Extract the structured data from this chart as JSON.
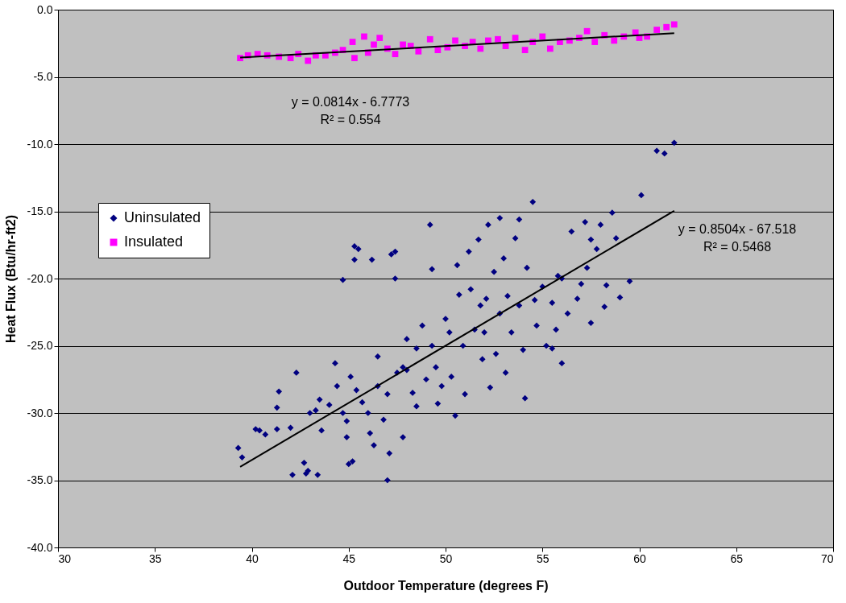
{
  "chart_data": {
    "type": "scatter",
    "xlabel": "Outdoor Temperature (degrees F)",
    "ylabel": "Heat Flux (Btu/hr-ft2)",
    "xlim": [
      30,
      70
    ],
    "xticks": [
      30,
      35,
      40,
      45,
      50,
      55,
      60,
      65,
      70
    ],
    "ylim": [
      -40,
      0
    ],
    "yticks": [
      {
        "value": -40,
        "label": "-40.0"
      },
      {
        "value": -35,
        "label": "-35.0"
      },
      {
        "value": -30,
        "label": "-30.0"
      },
      {
        "value": -25,
        "label": "-25.0"
      },
      {
        "value": -20,
        "label": "-20.0"
      },
      {
        "value": -15,
        "label": "-15.0"
      },
      {
        "value": -10,
        "label": "-10.0"
      },
      {
        "value": -5,
        "label": "-5.0"
      },
      {
        "value": 0,
        "label": "0.0"
      }
    ],
    "grid": "y",
    "legend": "left",
    "series": [
      {
        "name": "Uninsulated",
        "color": "#000080",
        "marker": "diamond",
        "x": [
          39.3,
          39.5,
          40.2,
          40.4,
          40.7,
          41.3,
          41.3,
          41.4,
          42.0,
          42.3,
          42.1,
          42.7,
          42.8,
          42.9,
          43.0,
          43.3,
          43.5,
          43.6,
          43.4,
          44.0,
          44.3,
          44.4,
          44.7,
          44.9,
          44.9,
          45.0,
          45.2,
          45.1,
          45.4,
          45.3,
          45.5,
          45.3,
          44.7,
          45.7,
          46.0,
          46.1,
          46.3,
          46.5,
          46.2,
          46.8,
          47.0,
          47.0,
          47.1,
          47.4,
          47.2,
          47.4,
          47.5,
          47.8,
          47.8,
          48.0,
          48.3,
          48.5,
          48.5,
          48.8,
          49.0,
          49.2,
          49.3,
          49.3,
          49.5,
          49.6,
          49.8,
          50.0,
          50.2,
          50.3,
          50.5,
          50.6,
          50.7,
          50.9,
          51.0,
          51.2,
          51.3,
          51.5,
          51.7,
          51.8,
          51.9,
          52.0,
          52.1,
          52.2,
          52.3,
          52.5,
          52.6,
          52.8,
          53.0,
          53.1,
          53.2,
          53.4,
          53.6,
          53.8,
          54.0,
          54.1,
          54.2,
          54.5,
          54.6,
          54.7,
          55.0,
          55.2,
          55.5,
          55.8,
          55.7,
          56.0,
          56.3,
          56.5,
          56.8,
          57.0,
          57.2,
          57.3,
          57.5,
          57.5,
          57.8,
          58.0,
          58.2,
          58.3,
          58.6,
          58.8,
          59.0,
          59.5,
          60.1,
          60.9,
          61.3,
          61.8,
          52.8,
          53.8,
          55.5,
          56.0,
          48.0,
          46.5
        ],
        "values": [
          -32.6,
          -33.3,
          -31.2,
          -31.3,
          -31.6,
          -31.2,
          -29.6,
          -28.4,
          -31.1,
          -27.0,
          -34.6,
          -33.7,
          -34.5,
          -34.3,
          -30.0,
          -29.8,
          -29.0,
          -31.3,
          -34.6,
          -29.4,
          -26.3,
          -28.0,
          -30.0,
          -30.6,
          -31.8,
          -33.8,
          -33.6,
          -27.3,
          -28.3,
          -17.6,
          -17.8,
          -18.6,
          -20.1,
          -29.2,
          -30.0,
          -31.5,
          -32.4,
          -28.0,
          -18.6,
          -30.5,
          -28.6,
          -35.0,
          -33.0,
          -18.0,
          -18.2,
          -20.0,
          -27.0,
          -26.6,
          -31.8,
          -24.5,
          -28.5,
          -25.2,
          -29.5,
          -23.5,
          -27.5,
          -16.0,
          -19.3,
          -25.0,
          -26.6,
          -29.3,
          -28.0,
          -23.0,
          -24.0,
          -27.3,
          -30.2,
          -19.0,
          -21.2,
          -25.0,
          -28.6,
          -18.0,
          -20.8,
          -23.8,
          -17.1,
          -22.0,
          -26.0,
          -24.0,
          -21.5,
          -16.0,
          -28.1,
          -19.5,
          -25.6,
          -22.6,
          -18.5,
          -27.0,
          -21.3,
          -24.0,
          -17.0,
          -22.0,
          -25.3,
          -28.9,
          -19.2,
          -14.3,
          -21.6,
          -23.5,
          -20.6,
          -25.0,
          -21.8,
          -19.8,
          -23.8,
          -20.0,
          -22.6,
          -16.5,
          -21.5,
          -20.4,
          -15.8,
          -19.2,
          -17.1,
          -23.3,
          -17.8,
          -16.0,
          -22.1,
          -20.5,
          -15.1,
          -17.0,
          -21.4,
          -20.2,
          -13.8,
          -10.5,
          -10.7,
          -9.9,
          -15.5,
          -15.6,
          -25.2,
          -26.3,
          -26.8,
          -25.8
        ]
      },
      {
        "name": "Insulated",
        "color": "#ff00ff",
        "marker": "square",
        "x": [
          39.4,
          39.8,
          40.3,
          40.8,
          41.4,
          42.0,
          42.4,
          42.9,
          43.3,
          43.8,
          44.3,
          44.7,
          45.2,
          45.3,
          45.8,
          46.0,
          46.3,
          46.6,
          47.0,
          47.4,
          47.8,
          48.2,
          48.6,
          49.2,
          49.6,
          50.1,
          50.5,
          51.0,
          51.4,
          51.8,
          52.2,
          52.7,
          53.1,
          53.6,
          54.1,
          54.5,
          55.0,
          55.4,
          55.9,
          56.4,
          56.9,
          57.3,
          57.7,
          58.2,
          58.7,
          59.2,
          59.8,
          60.4,
          60.9,
          61.4,
          61.8,
          60.0
        ],
        "values": [
          -3.6,
          -3.4,
          -3.3,
          -3.4,
          -3.5,
          -3.6,
          -3.3,
          -3.8,
          -3.4,
          -3.4,
          -3.2,
          -3.0,
          -2.4,
          -3.6,
          -2.0,
          -3.2,
          -2.6,
          -2.1,
          -2.9,
          -3.3,
          -2.6,
          -2.7,
          -3.1,
          -2.2,
          -3.0,
          -2.8,
          -2.3,
          -2.7,
          -2.4,
          -2.9,
          -2.3,
          -2.2,
          -2.7,
          -2.1,
          -3.0,
          -2.4,
          -2.0,
          -2.9,
          -2.4,
          -2.3,
          -2.1,
          -1.6,
          -2.4,
          -1.9,
          -2.3,
          -2.0,
          -1.7,
          -2.0,
          -1.5,
          -1.3,
          -1.1,
          -2.1
        ]
      },
      {
        "type": "line",
        "color": "#000000",
        "x": [
          39.4,
          61.8
        ],
        "values": [
          -34.01,
          -14.96
        ]
      },
      {
        "type": "line",
        "color": "#000000",
        "x": [
          39.4,
          61.8
        ],
        "values": [
          -3.57,
          -1.75
        ]
      }
    ],
    "annotations": [
      "y = 0.0814x - 6.7773",
      "R² = 0.554",
      "y = 0.8504x - 67.518",
      "R² = 0.5468"
    ]
  }
}
